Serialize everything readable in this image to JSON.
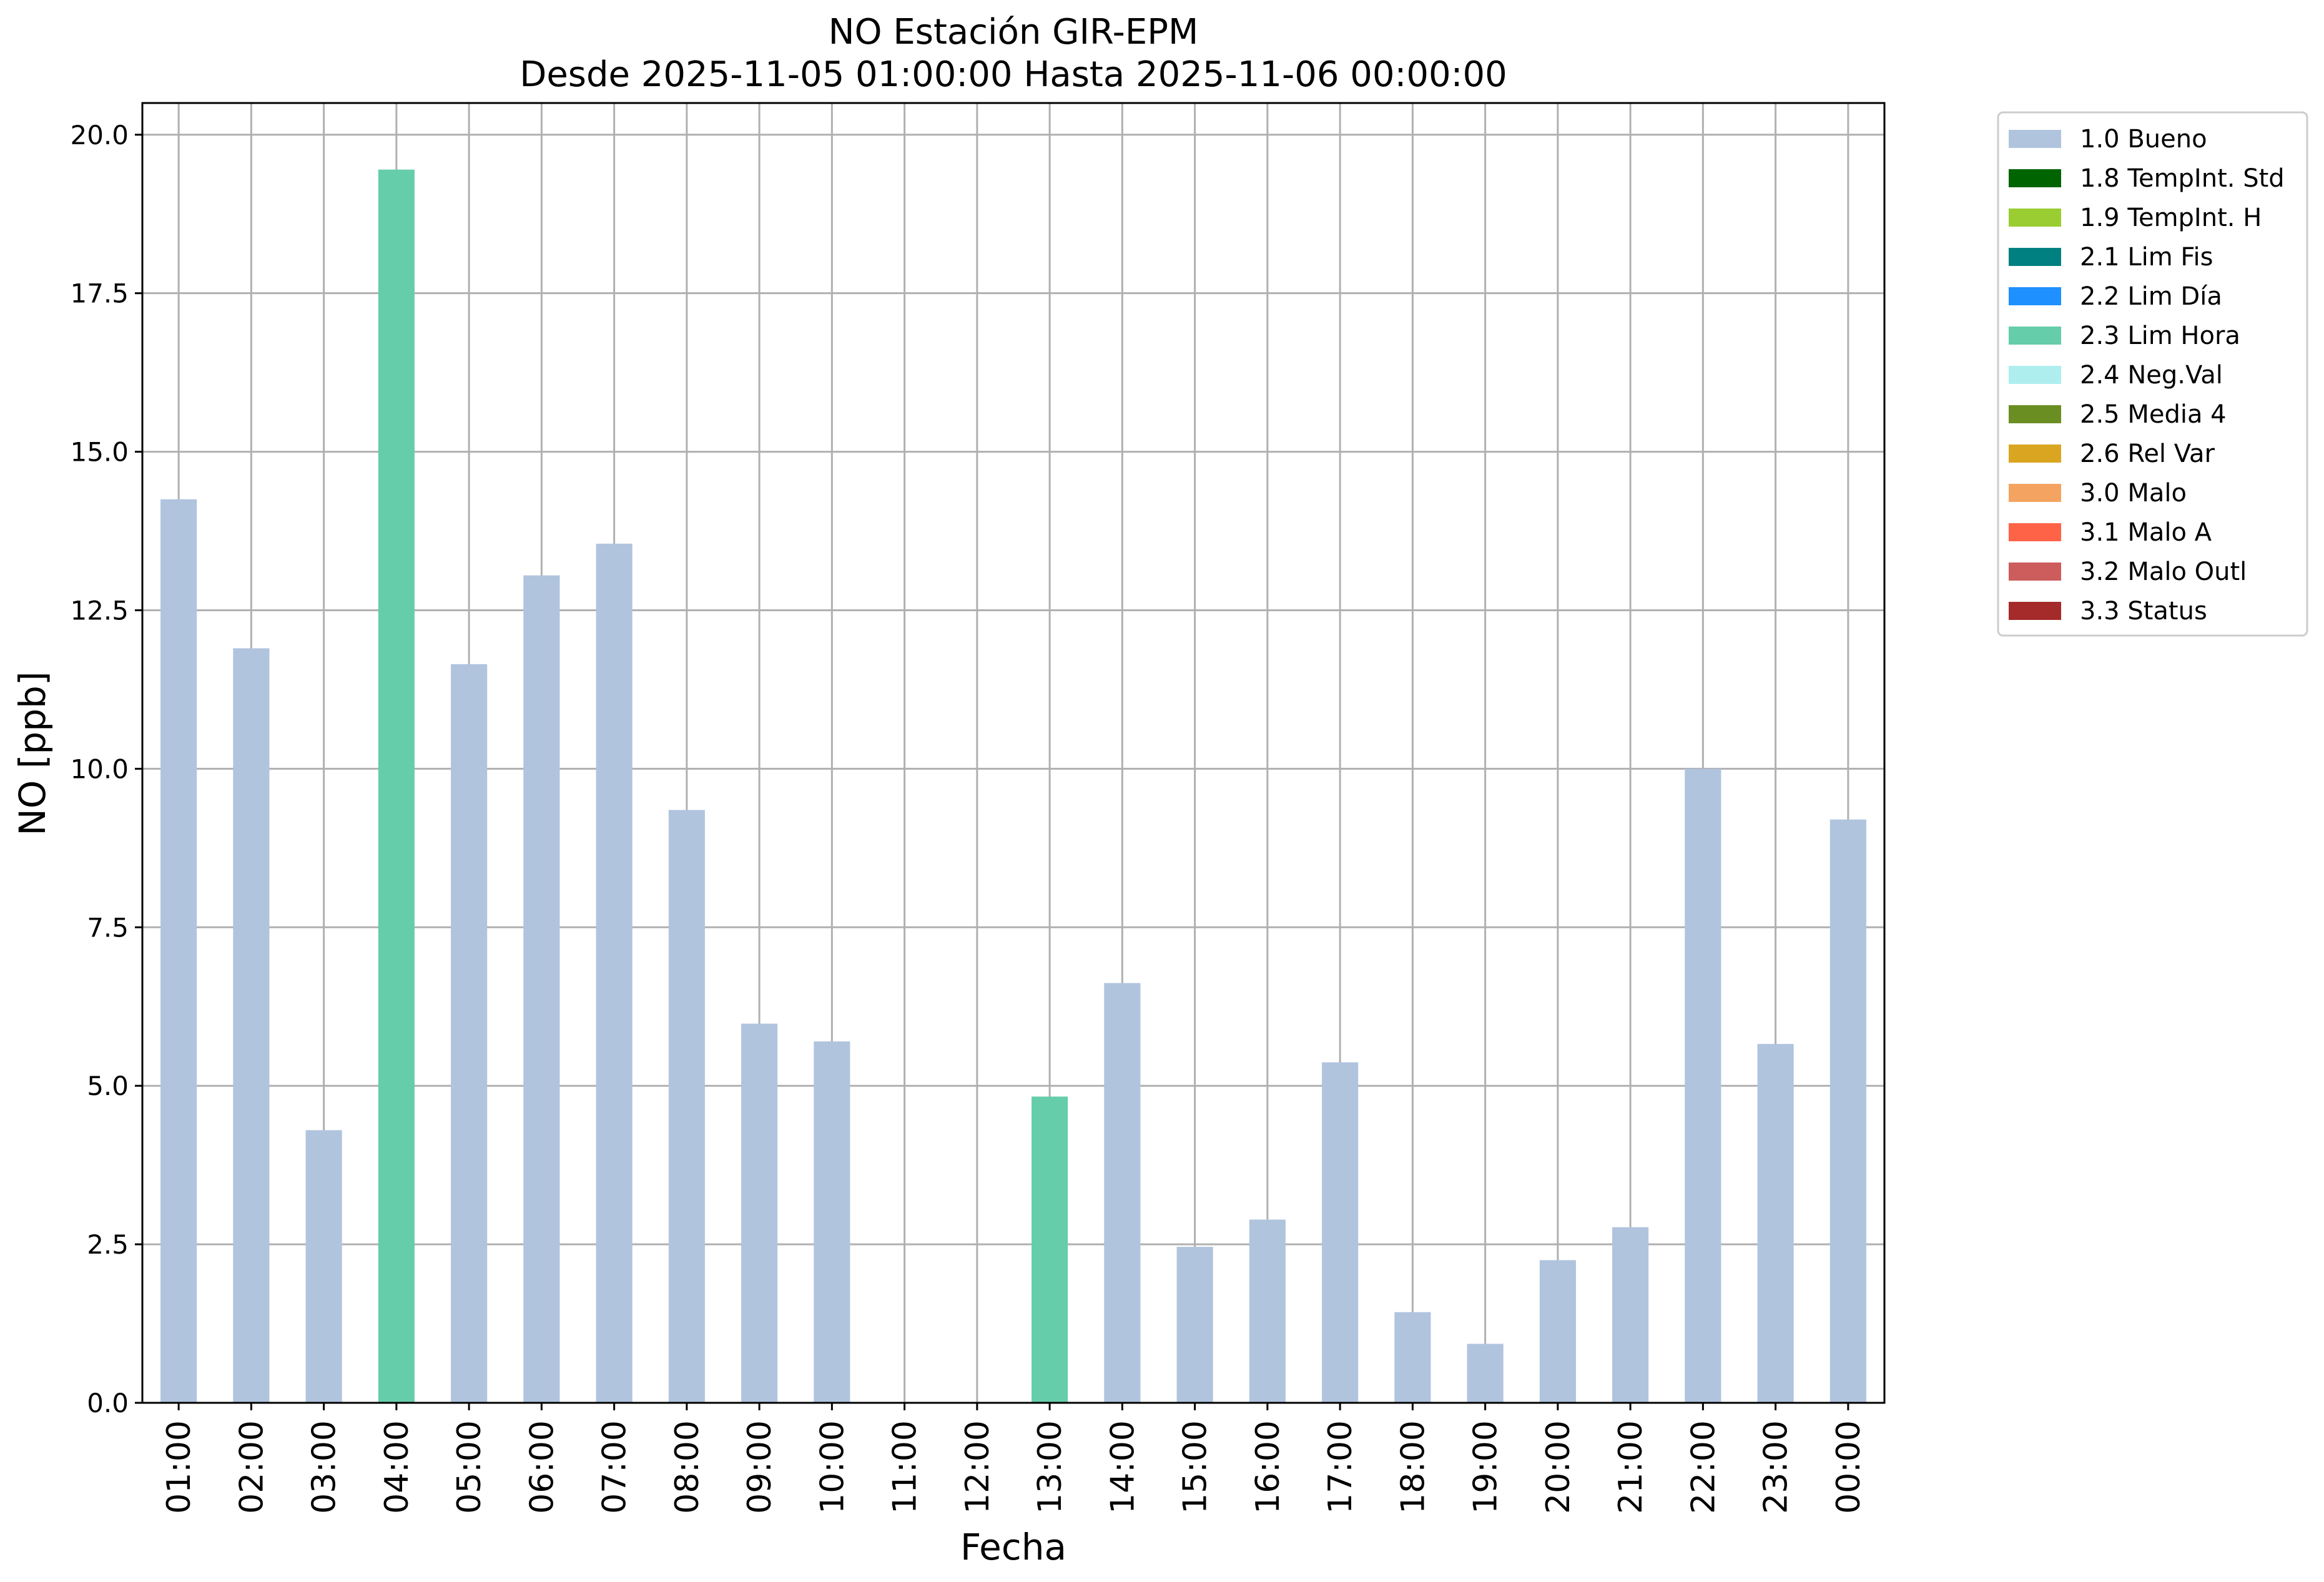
{
  "chart_data": {
    "type": "bar",
    "title": "NO Estación GIR-EPM",
    "subtitle": "Desde 2025-11-05 01:00:00 Hasta 2025-11-06 00:00:00",
    "xlabel": "Fecha",
    "ylabel": "NO [ppb]",
    "ylim": [
      0,
      20.5
    ],
    "yticks": [
      0,
      2.5,
      5,
      7.5,
      10,
      12.5,
      15,
      17.5,
      20
    ],
    "ytick_labels": [
      "0.0",
      "2.5",
      "5.0",
      "7.5",
      "10.0",
      "12.5",
      "15.0",
      "17.5",
      "20.0"
    ],
    "grid": true,
    "legend_position": "outside-top-right",
    "categories": [
      "01:00",
      "02:00",
      "03:00",
      "04:00",
      "05:00",
      "06:00",
      "07:00",
      "08:00",
      "09:00",
      "10:00",
      "11:00",
      "12:00",
      "13:00",
      "14:00",
      "15:00",
      "16:00",
      "17:00",
      "18:00",
      "19:00",
      "20:00",
      "21:00",
      "22:00",
      "23:00",
      "00:00"
    ],
    "values": [
      14.25,
      11.9,
      4.3,
      19.45,
      11.65,
      13.05,
      13.55,
      9.35,
      5.98,
      5.7,
      null,
      null,
      4.83,
      6.62,
      2.46,
      2.89,
      5.37,
      1.43,
      0.93,
      2.25,
      2.77,
      10.0,
      5.66,
      9.2
    ],
    "flags": [
      "1.0 Bueno",
      "1.0 Bueno",
      "1.0 Bueno",
      "2.3 Lim Hora",
      "1.0 Bueno",
      "1.0 Bueno",
      "1.0 Bueno",
      "1.0 Bueno",
      "1.0 Bueno",
      "1.0 Bueno",
      null,
      null,
      "2.3 Lim Hora",
      "1.0 Bueno",
      "1.0 Bueno",
      "1.0 Bueno",
      "1.0 Bueno",
      "1.0 Bueno",
      "1.0 Bueno",
      "1.0 Bueno",
      "1.0 Bueno",
      "1.0 Bueno",
      "1.0 Bueno",
      "1.0 Bueno"
    ],
    "legend": [
      {
        "label": "1.0 Bueno",
        "color": "#b0c4de"
      },
      {
        "label": "1.8 TempInt. Std",
        "color": "#006400"
      },
      {
        "label": "1.9 TempInt. H",
        "color": "#9acd32"
      },
      {
        "label": "2.1 Lim Fis",
        "color": "#008080"
      },
      {
        "label": "2.2 Lim Día",
        "color": "#1e90ff"
      },
      {
        "label": "2.3 Lim Hora",
        "color": "#66cdaa"
      },
      {
        "label": "2.4 Neg.Val",
        "color": "#afeeee"
      },
      {
        "label": "2.5 Media 4",
        "color": "#6b8e23"
      },
      {
        "label": "2.6 Rel Var",
        "color": "#daa520"
      },
      {
        "label": "3.0 Malo",
        "color": "#f4a460"
      },
      {
        "label": "3.1 Malo A",
        "color": "#ff6347"
      },
      {
        "label": "3.2 Malo Outl",
        "color": "#cd5c5c"
      },
      {
        "label": "3.3 Status",
        "color": "#a52a2a"
      }
    ]
  }
}
